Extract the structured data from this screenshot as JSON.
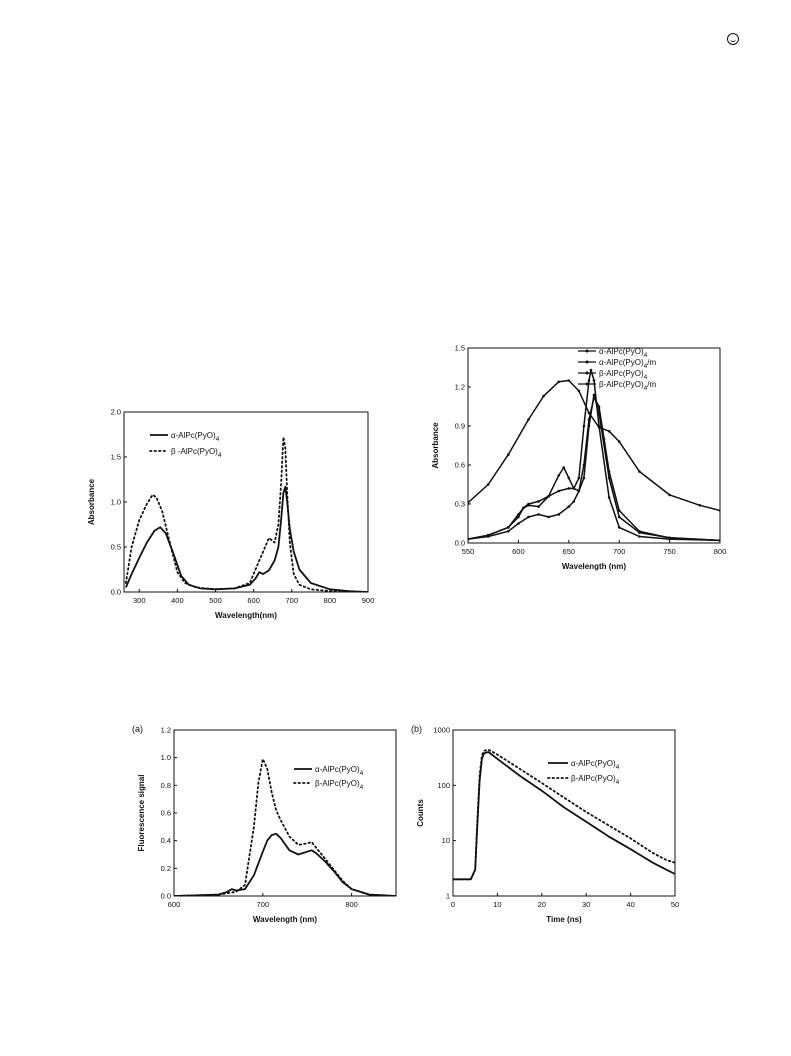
{
  "page_icon": "circle-logo-icon",
  "chart_data": [
    {
      "id": "abs1",
      "type": "line",
      "xlabel": "Wavelength(nm)",
      "ylabel": "Absorbance",
      "xlim": [
        260,
        900
      ],
      "ylim": [
        0,
        2.0
      ],
      "xticks": [
        300,
        400,
        500,
        600,
        700,
        800,
        900
      ],
      "yticks": [
        0.0,
        0.5,
        1.0,
        1.5,
        2.0
      ],
      "ytick_labels": [
        "0.0",
        "0.5",
        "1.0",
        "1.5",
        "2.0"
      ],
      "legend_position": "top-left",
      "series": [
        {
          "name": "α-AlPc(PyO)",
          "name_sub": "4",
          "style": "solid",
          "x": [
            265,
            280,
            300,
            320,
            340,
            355,
            370,
            390,
            410,
            430,
            460,
            500,
            550,
            590,
            605,
            615,
            625,
            640,
            655,
            665,
            672,
            678,
            683,
            688,
            695,
            705,
            720,
            750,
            800,
            850,
            900
          ],
          "y": [
            0.05,
            0.2,
            0.38,
            0.55,
            0.68,
            0.72,
            0.65,
            0.42,
            0.18,
            0.08,
            0.04,
            0.03,
            0.04,
            0.08,
            0.15,
            0.22,
            0.2,
            0.24,
            0.35,
            0.5,
            0.8,
            1.1,
            1.17,
            1.0,
            0.7,
            0.45,
            0.25,
            0.1,
            0.03,
            0.01,
            0.0
          ]
        },
        {
          "name": "β -AlPc(PyO)",
          "name_sub": "4",
          "style": "dotted",
          "x": [
            265,
            280,
            300,
            320,
            335,
            345,
            360,
            380,
            400,
            420,
            450,
            500,
            550,
            590,
            610,
            625,
            640,
            655,
            665,
            672,
            678,
            683,
            688,
            695,
            705,
            720,
            750,
            800,
            850,
            900
          ],
          "y": [
            0.1,
            0.5,
            0.8,
            0.98,
            1.08,
            1.05,
            0.9,
            0.55,
            0.22,
            0.1,
            0.05,
            0.03,
            0.04,
            0.1,
            0.3,
            0.45,
            0.6,
            0.55,
            0.75,
            1.2,
            1.72,
            1.6,
            1.1,
            0.55,
            0.2,
            0.08,
            0.03,
            0.01,
            0.0,
            0.0
          ]
        }
      ]
    },
    {
      "id": "abs2",
      "type": "line",
      "xlabel": "Wavelength (nm)",
      "ylabel": "Absorbance",
      "xlim": [
        550,
        800
      ],
      "ylim": [
        0,
        1.5
      ],
      "xticks": [
        550,
        600,
        650,
        700,
        750,
        800
      ],
      "yticks": [
        0.0,
        0.3,
        0.6,
        0.9,
        1.2,
        1.5
      ],
      "ytick_labels": [
        "0.0",
        "0.3",
        "0.6",
        "0.9",
        "1.2",
        "1.5"
      ],
      "legend_position": "top-right",
      "series": [
        {
          "name": "α-AlPc(PyO)",
          "name_sub": "4",
          "suffix": "",
          "marker": "dot",
          "x": [
            550,
            570,
            590,
            600,
            605,
            610,
            620,
            630,
            640,
            645,
            650,
            655,
            660,
            665,
            670,
            675,
            680,
            690,
            700,
            720,
            750,
            800
          ],
          "y": [
            0.03,
            0.06,
            0.12,
            0.2,
            0.27,
            0.29,
            0.28,
            0.36,
            0.52,
            0.58,
            0.5,
            0.42,
            0.4,
            0.5,
            0.9,
            1.14,
            1.0,
            0.5,
            0.2,
            0.08,
            0.04,
            0.02
          ]
        },
        {
          "name": "α-AlPc(PyO)",
          "name_sub": "4",
          "suffix": "/m",
          "marker": "diamond",
          "x": [
            550,
            570,
            590,
            600,
            605,
            610,
            620,
            630,
            640,
            650,
            655,
            660,
            665,
            670,
            672,
            675,
            680,
            690,
            700,
            720,
            750,
            800
          ],
          "y": [
            0.03,
            0.06,
            0.12,
            0.22,
            0.27,
            0.3,
            0.32,
            0.36,
            0.4,
            0.42,
            0.42,
            0.5,
            0.9,
            1.25,
            1.33,
            1.25,
            0.9,
            0.35,
            0.12,
            0.05,
            0.03,
            0.02
          ]
        },
        {
          "name": "β-AlPc(PyO)",
          "name_sub": "4",
          "suffix": "",
          "marker": "triangle",
          "x": [
            550,
            570,
            590,
            600,
            610,
            620,
            630,
            640,
            650,
            655,
            660,
            665,
            670,
            675,
            680,
            685,
            690,
            700,
            720,
            750,
            800
          ],
          "y": [
            0.03,
            0.05,
            0.09,
            0.15,
            0.2,
            0.22,
            0.2,
            0.22,
            0.28,
            0.32,
            0.4,
            0.6,
            0.95,
            1.12,
            1.05,
            0.8,
            0.55,
            0.25,
            0.09,
            0.04,
            0.02
          ]
        },
        {
          "name": "β-AlPc(PyO)",
          "name_sub": "4",
          "suffix": "/m",
          "marker": "star",
          "x": [
            550,
            570,
            590,
            610,
            625,
            640,
            650,
            660,
            670,
            680,
            690,
            700,
            720,
            750,
            780,
            800
          ],
          "y": [
            0.31,
            0.45,
            0.68,
            0.95,
            1.13,
            1.24,
            1.25,
            1.17,
            1.0,
            0.89,
            0.86,
            0.78,
            0.55,
            0.37,
            0.29,
            0.25
          ]
        }
      ]
    },
    {
      "id": "fluor",
      "panel": "(a)",
      "type": "line",
      "xlabel": "Wavelength (nm)",
      "ylabel": "Fluorescence signal",
      "xlim": [
        600,
        850
      ],
      "ylim": [
        0,
        1.2
      ],
      "xticks": [
        600,
        700,
        800
      ],
      "yticks": [
        0.0,
        0.2,
        0.4,
        0.6,
        0.8,
        1.0,
        1.2
      ],
      "ytick_labels": [
        "0.0",
        "0.2",
        "0.4",
        "0.6",
        "0.8",
        "1.0",
        "1.2"
      ],
      "legend_position": "top-right",
      "series": [
        {
          "name": "α-AlPc(PyO)",
          "name_sub": "4",
          "style": "solid",
          "x": [
            600,
            650,
            660,
            665,
            670,
            680,
            690,
            700,
            705,
            710,
            715,
            720,
            730,
            740,
            750,
            755,
            760,
            770,
            780,
            790,
            800,
            820,
            850
          ],
          "y": [
            0.0,
            0.01,
            0.03,
            0.05,
            0.04,
            0.05,
            0.15,
            0.32,
            0.4,
            0.44,
            0.45,
            0.42,
            0.33,
            0.3,
            0.32,
            0.33,
            0.31,
            0.25,
            0.18,
            0.1,
            0.05,
            0.01,
            0.0
          ]
        },
        {
          "name": "β-AlPc(PyO)",
          "name_sub": "4",
          "style": "dotted",
          "x": [
            600,
            650,
            660,
            670,
            680,
            690,
            695,
            700,
            705,
            710,
            715,
            720,
            730,
            740,
            750,
            755,
            760,
            770,
            780,
            790,
            800,
            820,
            850
          ],
          "y": [
            0.0,
            0.01,
            0.02,
            0.03,
            0.08,
            0.5,
            0.82,
            0.99,
            0.92,
            0.75,
            0.62,
            0.55,
            0.43,
            0.37,
            0.38,
            0.39,
            0.35,
            0.27,
            0.19,
            0.11,
            0.05,
            0.01,
            0.0
          ]
        }
      ]
    },
    {
      "id": "decay",
      "panel": "(b)",
      "type": "line",
      "xlabel": "Time (ns)",
      "ylabel": "Counts",
      "xlim": [
        0,
        50
      ],
      "ylim": [
        1,
        1000
      ],
      "yscale": "log",
      "xticks": [
        0,
        10,
        20,
        30,
        40,
        50
      ],
      "yticks": [
        1,
        10,
        100,
        1000
      ],
      "ytick_labels": [
        "1",
        "10",
        "100",
        "1000"
      ],
      "legend_position": "top-right",
      "series": [
        {
          "name": "α-AlPc(PyO)",
          "name_sub": "4",
          "style": "solid",
          "x": [
            0,
            2,
            4,
            5,
            5.5,
            6,
            6.5,
            7,
            8,
            10,
            15,
            20,
            25,
            30,
            35,
            40,
            45,
            48,
            50
          ],
          "y": [
            2,
            2,
            2,
            3,
            20,
            120,
            300,
            380,
            400,
            300,
            150,
            80,
            40,
            22,
            12,
            7,
            4,
            3,
            2.5
          ]
        },
        {
          "name": "β-AlPc(PyO)",
          "name_sub": "4",
          "style": "dotted",
          "x": [
            0,
            2,
            4,
            5,
            5.5,
            6,
            6.5,
            7,
            8,
            10,
            15,
            20,
            25,
            30,
            35,
            40,
            45,
            48,
            50
          ],
          "y": [
            2,
            2,
            2,
            3,
            25,
            150,
            350,
            420,
            440,
            360,
            200,
            110,
            60,
            33,
            19,
            11,
            6,
            4.5,
            4
          ]
        }
      ]
    }
  ]
}
